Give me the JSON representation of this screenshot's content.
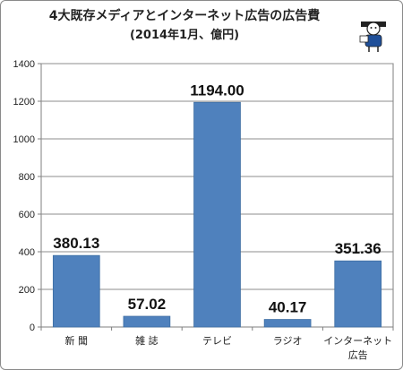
{
  "header": {
    "title": "4大既存メディアとインターネット広告の広告費",
    "subtitle": "(2014年1月、億円)"
  },
  "colors": {
    "bar": "#4f81bd",
    "bar_edge": "#3d6da3",
    "grid": "#8c8c8c",
    "axis": "#7f7f7f"
  },
  "chart_data": {
    "type": "bar",
    "title": "4大既存メディアとインターネット広告の広告費",
    "subtitle": "(2014年1月、億円)",
    "categories": [
      "新 聞",
      "雑 誌",
      "テレビ",
      "ラジオ",
      [
        "インターネット",
        "広告"
      ]
    ],
    "values": [
      380.13,
      57.02,
      1194.0,
      40.17,
      351.36
    ],
    "value_labels": [
      "380.13",
      "57.02",
      "1194.00",
      "40.17",
      "351.36"
    ],
    "yticks": [
      "0",
      "200",
      "400",
      "600",
      "800",
      "1000",
      "1200",
      "1400"
    ],
    "ylim": [
      0,
      1400
    ],
    "grid": true,
    "xlabel": "",
    "ylabel": ""
  }
}
